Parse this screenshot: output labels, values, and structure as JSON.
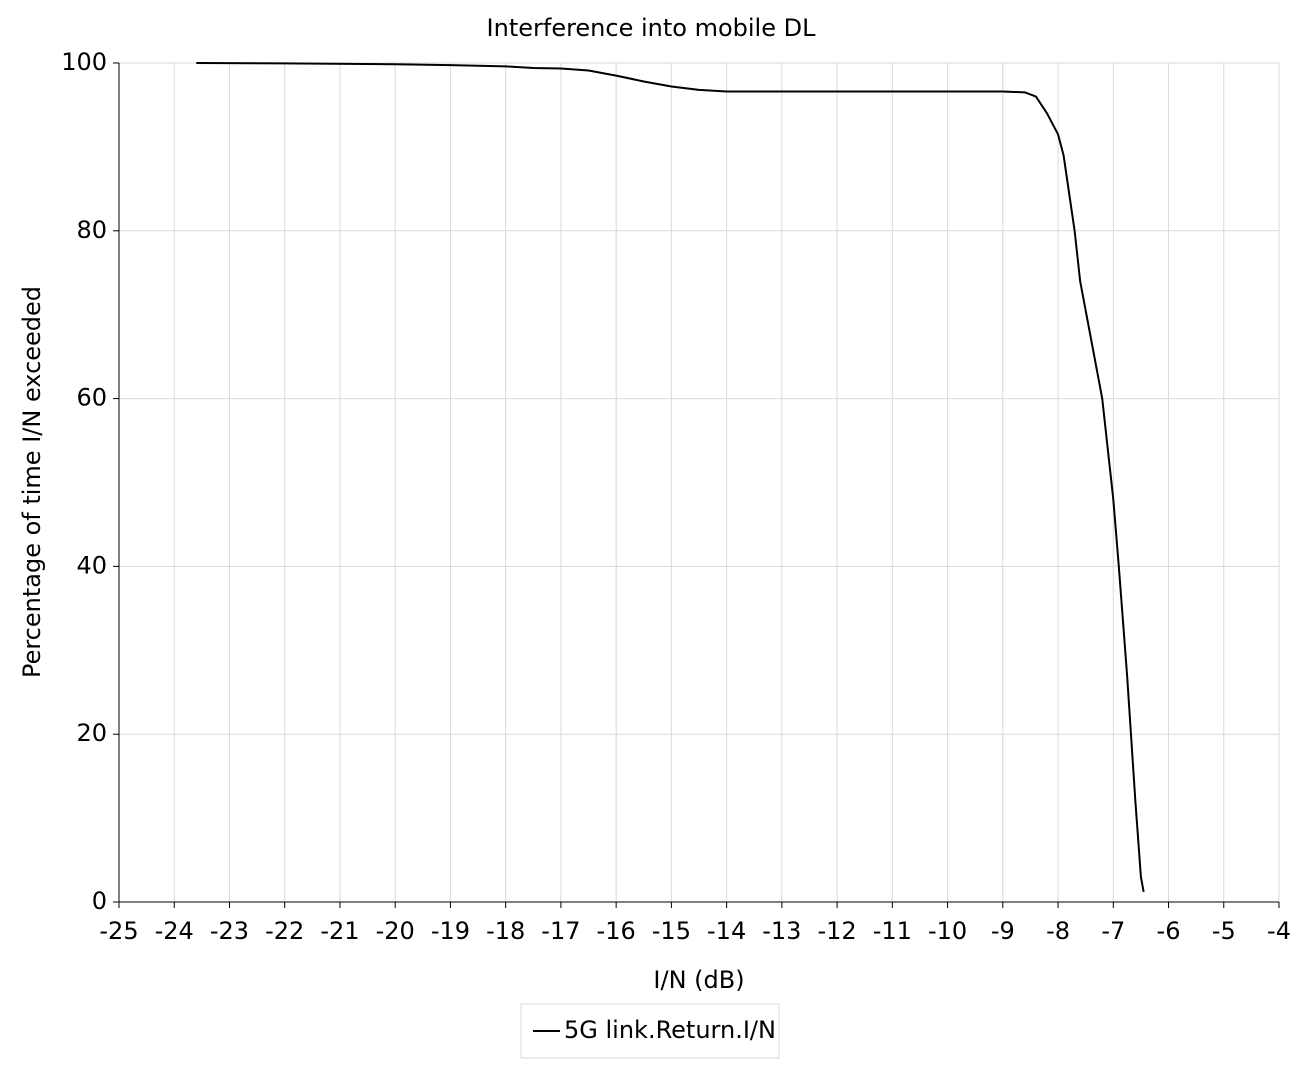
{
  "chart_data": {
    "type": "line",
    "title": "Interference into mobile DL",
    "x_label": "I/N (dB)",
    "y_label": "Percentage of time I/N exceeded",
    "x": [
      -23.6,
      -22,
      -20,
      -19,
      -18,
      -17.5,
      -17,
      -16.5,
      -16,
      -15.5,
      -15,
      -14.5,
      -14,
      -12,
      -10,
      -9,
      -8.6,
      -8.4,
      -8.2,
      -8.0,
      -7.9,
      -7.8,
      -7.7,
      -7.6,
      -7.4,
      -7.2,
      -7.0,
      -6.9,
      -6.75,
      -6.6,
      -6.5,
      -6.45
    ],
    "series": [
      {
        "name": "5G link.Return.I/N",
        "color": "#000000",
        "values": [
          100,
          99.95,
          99.85,
          99.75,
          99.6,
          99.4,
          99.35,
          99.1,
          98.5,
          97.8,
          97.2,
          96.8,
          96.6,
          96.6,
          96.6,
          96.6,
          96.5,
          96,
          94,
          91.5,
          89,
          84.5,
          80,
          74,
          67,
          60,
          48,
          40,
          27,
          12,
          3,
          1.2
        ]
      }
    ],
    "xlim": [
      -25,
      -4
    ],
    "xticks": [
      -25,
      -24,
      -23,
      -22,
      -21,
      -20,
      -19,
      -18,
      -17,
      -16,
      -15,
      -14,
      -13,
      -12,
      -11,
      -10,
      -9,
      -8,
      -7,
      -6,
      -5,
      -4
    ],
    "ylim": [
      0,
      100
    ],
    "yticks": [
      0,
      20,
      40,
      60,
      80,
      100
    ],
    "grid": true
  }
}
